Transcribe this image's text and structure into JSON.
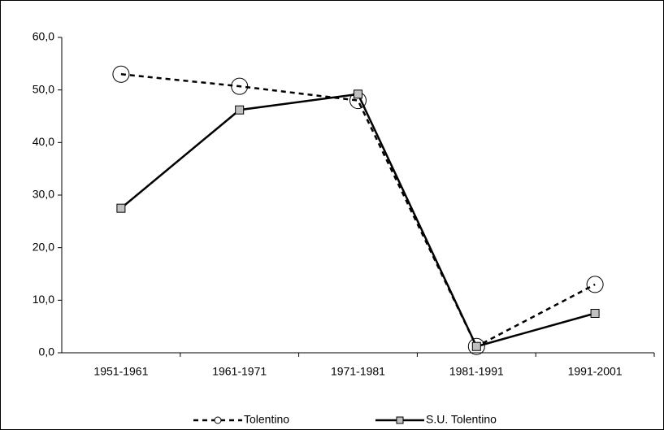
{
  "chart_data": {
    "type": "line",
    "categories": [
      "1951-1961",
      "1961-1971",
      "1971-1981",
      "1981-1991",
      "1991-2001"
    ],
    "series": [
      {
        "name": "Tolentino",
        "color": "#000000",
        "values": [
          53.0,
          50.7,
          48.0,
          1.2,
          13.0
        ]
      },
      {
        "name": "S.U. Tolentino",
        "color": "#000000",
        "values": [
          27.5,
          46.2,
          49.2,
          1.2,
          7.5
        ]
      }
    ],
    "ylim": [
      0,
      60
    ],
    "yticks": [
      {
        "value": 0,
        "label": "0,0"
      },
      {
        "value": 10,
        "label": "10,0"
      },
      {
        "value": 20,
        "label": "20,0"
      },
      {
        "value": 30,
        "label": "30,0"
      },
      {
        "value": 40,
        "label": "40,0"
      },
      {
        "value": 50,
        "label": "50,0"
      },
      {
        "value": 60,
        "label": "60,0"
      }
    ],
    "legend": "bottom"
  }
}
